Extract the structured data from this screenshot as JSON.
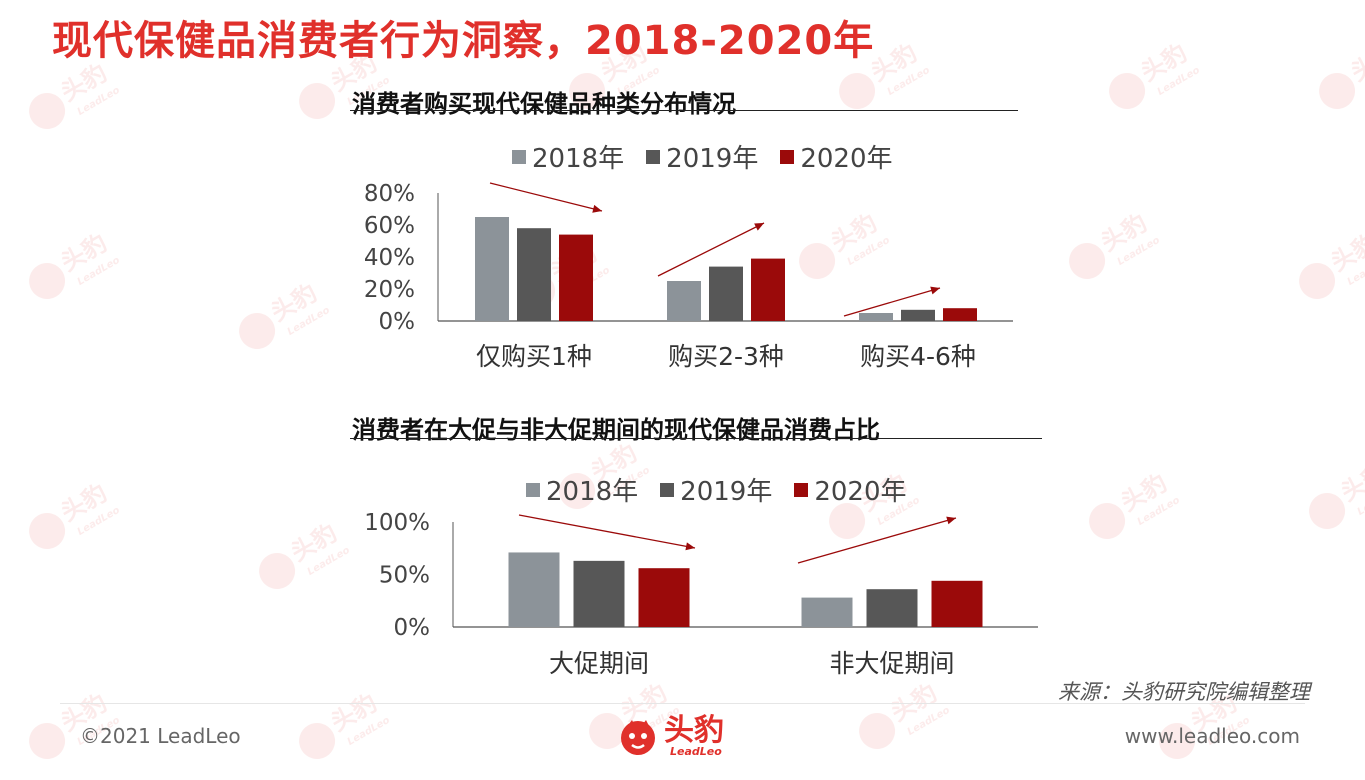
{
  "page": {
    "title": "现代保健品消费者行为洞察，2018-2020年"
  },
  "colors": {
    "title": "#e0302b",
    "series": [
      "#8c9399",
      "#575757",
      "#9b0a0a"
    ],
    "arrow": "#9b0a0a"
  },
  "watermark": {
    "text": "头豹",
    "subtext": "LeadLeo"
  },
  "chart_data": [
    {
      "type": "bar",
      "title": "消费者购买现代保健品种类分布情况",
      "categories": [
        "仅购买1种",
        "购买2-3种",
        "购买4-6种"
      ],
      "series": [
        {
          "name": "2018年",
          "values": [
            65,
            25,
            5
          ]
        },
        {
          "name": "2019年",
          "values": [
            58,
            34,
            7
          ]
        },
        {
          "name": "2020年",
          "values": [
            54,
            39,
            8
          ]
        }
      ],
      "ylim": [
        0,
        80
      ],
      "yticks": [
        "0%",
        "20%",
        "40%",
        "60%",
        "80%"
      ],
      "ytick_values": [
        0,
        20,
        40,
        60,
        80
      ],
      "legend": "top",
      "grid": false,
      "trend_arrows": [
        "down",
        "up",
        "up"
      ]
    },
    {
      "type": "bar",
      "title": "消费者在大促与非大促期间的现代保健品消费占比",
      "categories": [
        "大促期间",
        "非大促期间"
      ],
      "series": [
        {
          "name": "2018年",
          "values": [
            71,
            28
          ]
        },
        {
          "name": "2019年",
          "values": [
            63,
            36
          ]
        },
        {
          "name": "2020年",
          "values": [
            56,
            44
          ]
        }
      ],
      "ylim": [
        0,
        100
      ],
      "yticks": [
        "0%",
        "50%",
        "100%"
      ],
      "ytick_values": [
        0,
        50,
        100
      ],
      "legend": "top",
      "grid": false,
      "trend_arrows": [
        "down",
        "up"
      ]
    }
  ],
  "footer": {
    "source": "来源：头豹研究院编辑整理",
    "copyright": "©2021 LeadLeo",
    "website": "www.leadleo.com",
    "logo_cn": "头豹",
    "logo_en": "LeadLeo"
  }
}
